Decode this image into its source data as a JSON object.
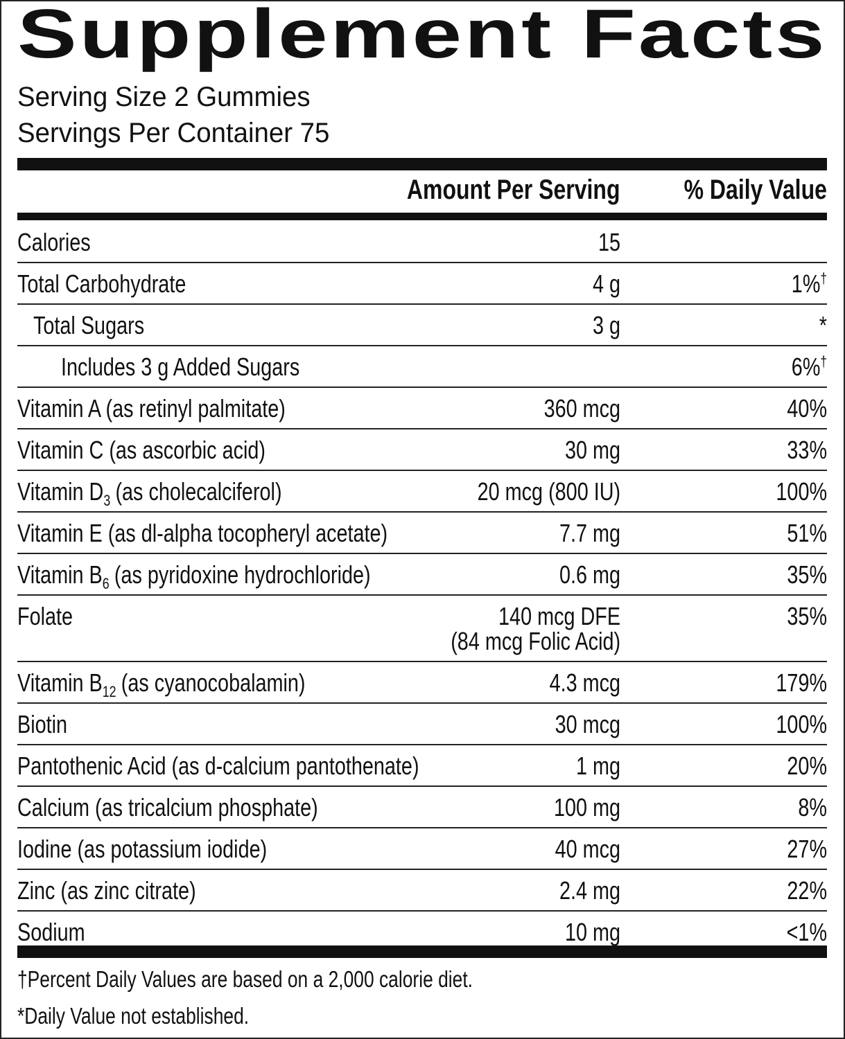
{
  "title": "Supplement Facts",
  "serving_size": "Serving Size 2 Gummies",
  "servings_per_container": "Servings Per Container 75",
  "columns": {
    "amount": "Amount Per Serving",
    "daily_value": "% Daily Value"
  },
  "rows": [
    {
      "name": "Calories",
      "amount": "15"
    },
    {
      "name": "Total Carbohydrate",
      "amount": "4 g",
      "dv": "1%",
      "dv_mark": "†"
    },
    {
      "name": "Total Sugars",
      "amount": "3 g",
      "dv": "*"
    },
    {
      "name": "Includes 3 g Added Sugars",
      "dv": "6%",
      "dv_mark": "†"
    },
    {
      "name": "Vitamin A (as retinyl palmitate)",
      "amount": "360 mcg",
      "dv": "40%"
    },
    {
      "name": "Vitamin C (as ascorbic acid)",
      "amount": "30 mg",
      "dv": "33%"
    },
    {
      "name": "Vitamin D",
      "sub": "3",
      "name_rest": "(as cholecalciferol)",
      "amount": "20 mcg (800 IU)",
      "dv": "100%"
    },
    {
      "name": "Vitamin E (as dl-alpha tocopheryl acetate)",
      "amount": "7.7 mg",
      "dv": "51%"
    },
    {
      "name": "Vitamin B",
      "sub": "6",
      "name_rest": "(as pyridoxine hydrochloride)",
      "amount": "0.6 mg",
      "dv": "35%"
    },
    {
      "name": "Folate",
      "amount": "140 mcg DFE",
      "amount_line2": "(84 mcg Folic Acid)",
      "dv": "35%"
    },
    {
      "name": "Vitamin B",
      "sub": "12",
      "name_rest": "(as cyanocobalamin)",
      "amount": "4.3 mcg",
      "dv": "179%"
    },
    {
      "name": "Biotin",
      "amount": "30 mcg",
      "dv": "100%"
    },
    {
      "name": "Pantothenic Acid (as d-calcium pantothenate)",
      "amount": "1 mg",
      "dv": "20%"
    },
    {
      "name": "Calcium (as tricalcium phosphate)",
      "amount": "100 mg",
      "dv": "8%"
    },
    {
      "name": "Iodine (as potassium iodide)",
      "amount": "40 mcg",
      "dv": "27%"
    },
    {
      "name": "Zinc (as zinc citrate)",
      "amount": "2.4 mg",
      "dv": "22%"
    },
    {
      "name": "Sodium",
      "amount": "10 mg",
      "dv": "<1%"
    }
  ],
  "footnotes": [
    "†Percent Daily Values are based on a 2,000 calorie diet.",
    "*Daily Value not established."
  ]
}
